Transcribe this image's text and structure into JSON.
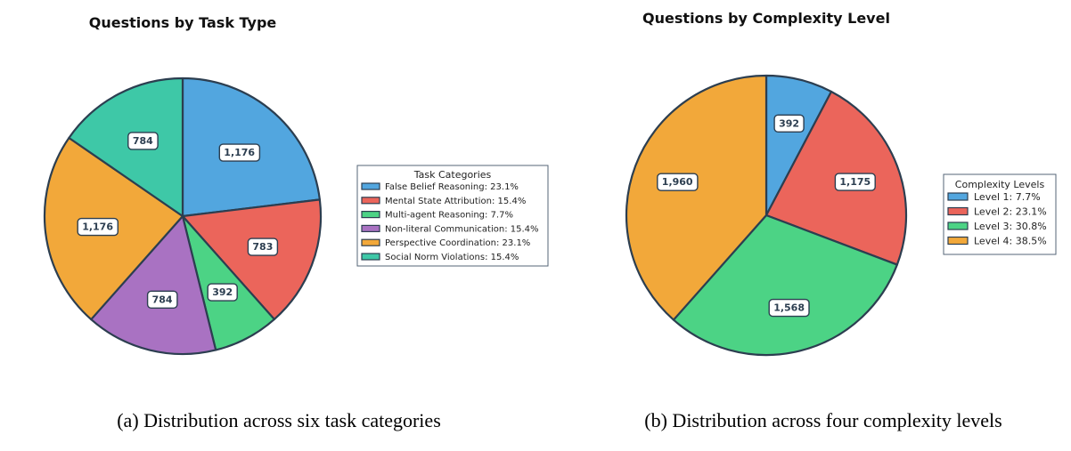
{
  "chart_data": [
    {
      "type": "pie",
      "title": "Questions by Task Type",
      "caption": "(a) Distribution across six task categories",
      "legend_title": "Task Categories",
      "legend_position": "right",
      "start_angle": "12 o'clock, clockwise",
      "slices": [
        {
          "category": "False Belief Reasoning",
          "value": 1176,
          "label": "1,176",
          "legend": "False Belief Reasoning: 23.1%",
          "color": "#52a6df"
        },
        {
          "category": "Mental State Attribution",
          "value": 783,
          "label": "783",
          "legend": "Mental State Attribution: 15.4%",
          "color": "#eb655b"
        },
        {
          "category": "Multi-agent Reasoning",
          "value": 392,
          "label": "392",
          "legend": "Multi-agent Reasoning: 7.7%",
          "color": "#4cd385"
        },
        {
          "category": "Non-literal Communication",
          "value": 784,
          "label": "784",
          "legend": "Non-literal Communication: 15.4%",
          "color": "#a972c2"
        },
        {
          "category": "Perspective Coordination",
          "value": 1176,
          "label": "1,176",
          "legend": "Perspective Coordination: 23.1%",
          "color": "#f2a83a"
        },
        {
          "category": "Social Norm Violations",
          "value": 784,
          "label": "784",
          "legend": "Social Norm Violations: 15.4%",
          "color": "#3ec8a7"
        }
      ]
    },
    {
      "type": "pie",
      "title": "Questions by Complexity Level",
      "caption": "(b) Distribution across four complexity levels",
      "legend_title": "Complexity Levels",
      "legend_position": "right",
      "start_angle": "12 o'clock, clockwise",
      "slices": [
        {
          "category": "Level 1",
          "value": 392,
          "label": "392",
          "legend": "Level 1: 7.7%",
          "color": "#52a6df"
        },
        {
          "category": "Level 2",
          "value": 1175,
          "label": "1,175",
          "legend": "Level 2: 23.1%",
          "color": "#eb655b"
        },
        {
          "category": "Level 3",
          "value": 1568,
          "label": "1,568",
          "legend": "Level 3: 30.8%",
          "color": "#4cd385"
        },
        {
          "category": "Level 4",
          "value": 1960,
          "label": "1,960",
          "legend": "Level 4: 38.5%",
          "color": "#f2a83a"
        }
      ]
    }
  ],
  "colors": {
    "edge": "#2c3e50",
    "label_box_fill": "#ffffff",
    "label_box_stroke": "#2c3e50",
    "legend_border": "#556677"
  }
}
